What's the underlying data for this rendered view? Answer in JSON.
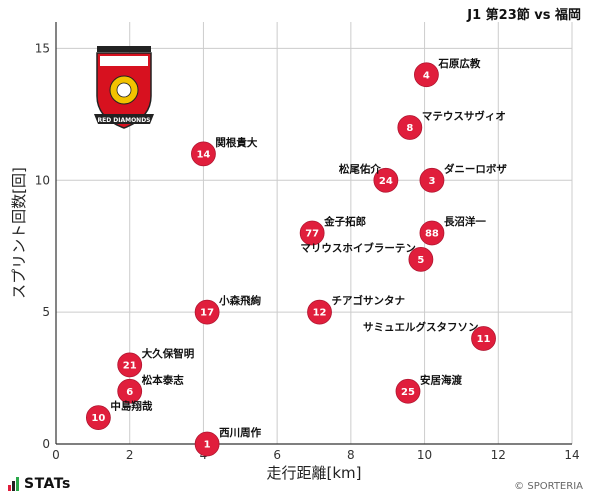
{
  "header": {
    "title": "J1 第23節 vs 福岡"
  },
  "footer": {
    "logo_text": "STATs",
    "copyright": "© SPORTERIA"
  },
  "crest": {
    "icon": "urawa-red-diamonds-crest",
    "text": "RED DIAMONDS"
  },
  "colors": {
    "point": "#e01e3c",
    "grid": "#cccccc",
    "axis": "#333333"
  },
  "chart_data": {
    "type": "scatter",
    "xlabel": "走行距離[km]",
    "ylabel": "スプリント回数[回]",
    "xlim": [
      0,
      14
    ],
    "ylim": [
      0,
      16
    ],
    "xticks": [
      0,
      2,
      4,
      6,
      8,
      10,
      12,
      14
    ],
    "yticks": [
      0,
      5,
      10,
      15
    ],
    "grid": true,
    "points": [
      {
        "number": "4",
        "name": "石原広教",
        "x": 10.05,
        "y": 14,
        "label_pos": "right"
      },
      {
        "number": "8",
        "name": "マテウスサヴィオ",
        "x": 9.6,
        "y": 12,
        "label_pos": "right"
      },
      {
        "number": "14",
        "name": "関根貴大",
        "x": 4.0,
        "y": 11,
        "label_pos": "right"
      },
      {
        "number": "24",
        "name": "松尾佑介",
        "x": 8.95,
        "y": 10,
        "label_pos": "left"
      },
      {
        "number": "3",
        "name": "ダニーロボザ",
        "x": 10.2,
        "y": 10,
        "label_pos": "right"
      },
      {
        "number": "77",
        "name": "金子拓郎",
        "x": 6.95,
        "y": 8,
        "label_pos": "right"
      },
      {
        "number": "88",
        "name": "長沼洋一",
        "x": 10.2,
        "y": 8,
        "label_pos": "right"
      },
      {
        "number": "5",
        "name": "マリウスホイブラーテン",
        "x": 9.9,
        "y": 7,
        "label_pos": "left"
      },
      {
        "number": "17",
        "name": "小森飛絢",
        "x": 4.1,
        "y": 5,
        "label_pos": "right"
      },
      {
        "number": "12",
        "name": "チアゴサンタナ",
        "x": 7.15,
        "y": 5,
        "label_pos": "right"
      },
      {
        "number": "11",
        "name": "サミュエルグスタフソン",
        "x": 11.6,
        "y": 4,
        "label_pos": "left"
      },
      {
        "number": "21",
        "name": "大久保智明",
        "x": 2.0,
        "y": 3,
        "label_pos": "right"
      },
      {
        "number": "6",
        "name": "松本泰志",
        "x": 2.0,
        "y": 2,
        "label_pos": "right"
      },
      {
        "number": "25",
        "name": "安居海渡",
        "x": 9.55,
        "y": 2,
        "label_pos": "right"
      },
      {
        "number": "10",
        "name": "中島翔哉",
        "x": 1.15,
        "y": 1,
        "label_pos": "right"
      },
      {
        "number": "1",
        "name": "西川周作",
        "x": 4.1,
        "y": 0,
        "label_pos": "right"
      }
    ]
  }
}
